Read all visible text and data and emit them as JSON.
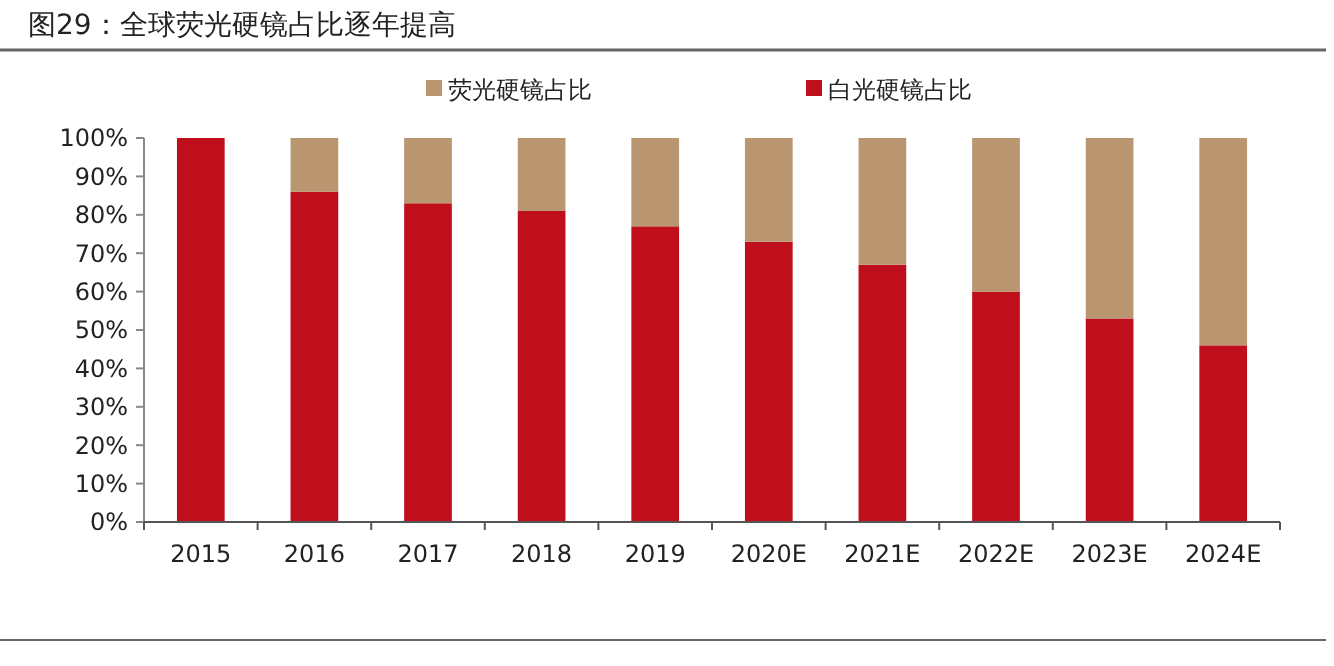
{
  "chart_data": {
    "type": "bar",
    "title": "图29：全球荧光硬镜占比逐年提高",
    "categories": [
      "2015",
      "2016",
      "2017",
      "2018",
      "2019",
      "2020E",
      "2021E",
      "2022E",
      "2023E",
      "2024E"
    ],
    "stacked": true,
    "series": [
      {
        "name": "白光硬镜占比",
        "color": "#c00f1c",
        "values": [
          100,
          86,
          83,
          81,
          77,
          73,
          67,
          60,
          53,
          46
        ]
      },
      {
        "name": "荧光硬镜占比",
        "color": "#b99670",
        "values": [
          0,
          14,
          17,
          19,
          23,
          27,
          33,
          40,
          47,
          54
        ]
      }
    ],
    "ylim": [
      0,
      100
    ],
    "yticks": [
      {
        "value": 0,
        "label": "0%"
      },
      {
        "value": 10,
        "label": "10%"
      },
      {
        "value": 20,
        "label": "20%"
      },
      {
        "value": 30,
        "label": "30%"
      },
      {
        "value": 40,
        "label": "40%"
      },
      {
        "value": 50,
        "label": "50%"
      },
      {
        "value": 60,
        "label": "60%"
      },
      {
        "value": 70,
        "label": "70%"
      },
      {
        "value": 80,
        "label": "80%"
      },
      {
        "value": 90,
        "label": "90%"
      },
      {
        "value": 100,
        "label": "100%"
      }
    ],
    "grid": false,
    "legend": "top"
  }
}
